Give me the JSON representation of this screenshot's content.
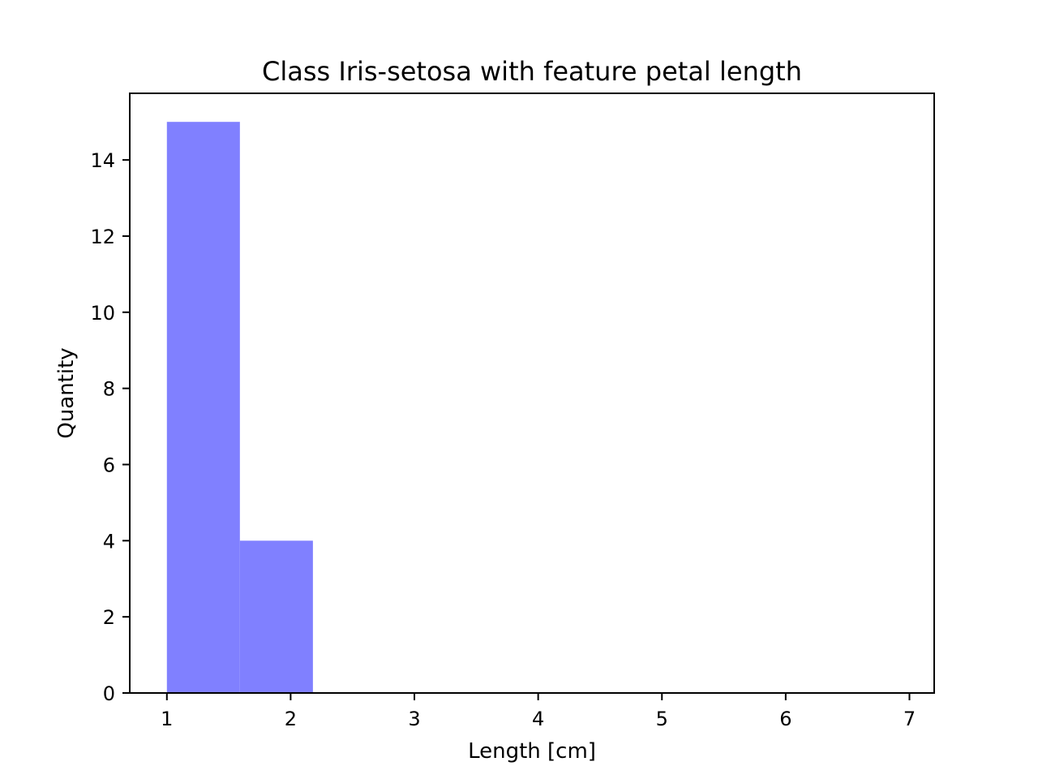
{
  "chart_data": {
    "type": "bar",
    "title": "Class Iris-setosa with feature petal length",
    "xlabel": "Length [cm]",
    "ylabel": "Quantity",
    "xlim": [
      0.7,
      7.2
    ],
    "ylim": [
      0,
      15.75
    ],
    "xticks": [
      1,
      2,
      3,
      4,
      5,
      6,
      7
    ],
    "yticks": [
      0,
      2,
      4,
      6,
      8,
      10,
      12,
      14
    ],
    "bar_color": "#8080ff",
    "bins": [
      {
        "x0": 1.0,
        "x1": 1.59,
        "value": 15
      },
      {
        "x0": 1.59,
        "x1": 2.18,
        "value": 4
      }
    ],
    "grid": false,
    "legend": "none"
  }
}
